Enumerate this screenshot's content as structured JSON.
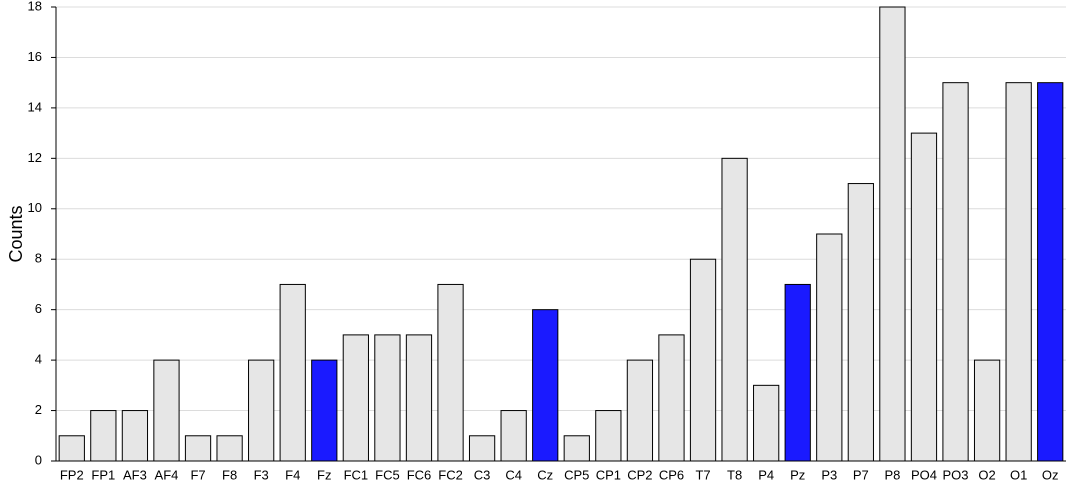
{
  "chart_data": {
    "type": "bar",
    "title": "",
    "xlabel": "",
    "ylabel": "Counts",
    "ylim": [
      0,
      18
    ],
    "yticks": [
      0,
      2,
      4,
      6,
      8,
      10,
      12,
      14,
      16,
      18
    ],
    "grid": "horizontal",
    "categories": [
      "FP2",
      "FP1",
      "AF3",
      "AF4",
      "F7",
      "F8",
      "F3",
      "F4",
      "Fz",
      "FC1",
      "FC5",
      "FC6",
      "FC2",
      "C3",
      "C4",
      "Cz",
      "CP5",
      "CP1",
      "CP2",
      "CP6",
      "T7",
      "T8",
      "P4",
      "Pz",
      "P3",
      "P7",
      "P8",
      "PO4",
      "PO3",
      "O2",
      "O1",
      "Oz"
    ],
    "values": [
      1,
      2,
      2,
      4,
      1,
      1,
      4,
      7,
      4,
      5,
      5,
      5,
      7,
      1,
      2,
      6,
      1,
      2,
      4,
      5,
      8,
      12,
      3,
      7,
      9,
      11,
      18,
      13,
      15,
      4,
      15,
      15
    ],
    "highlighted": [
      "Fz",
      "Cz",
      "Pz",
      "Oz"
    ],
    "colors": {
      "bar_default": "#e6e6e6",
      "bar_highlight": "#1a1aff",
      "bar_stroke": "#000000",
      "grid": "#dcdcdc",
      "axis": "#000000"
    }
  }
}
